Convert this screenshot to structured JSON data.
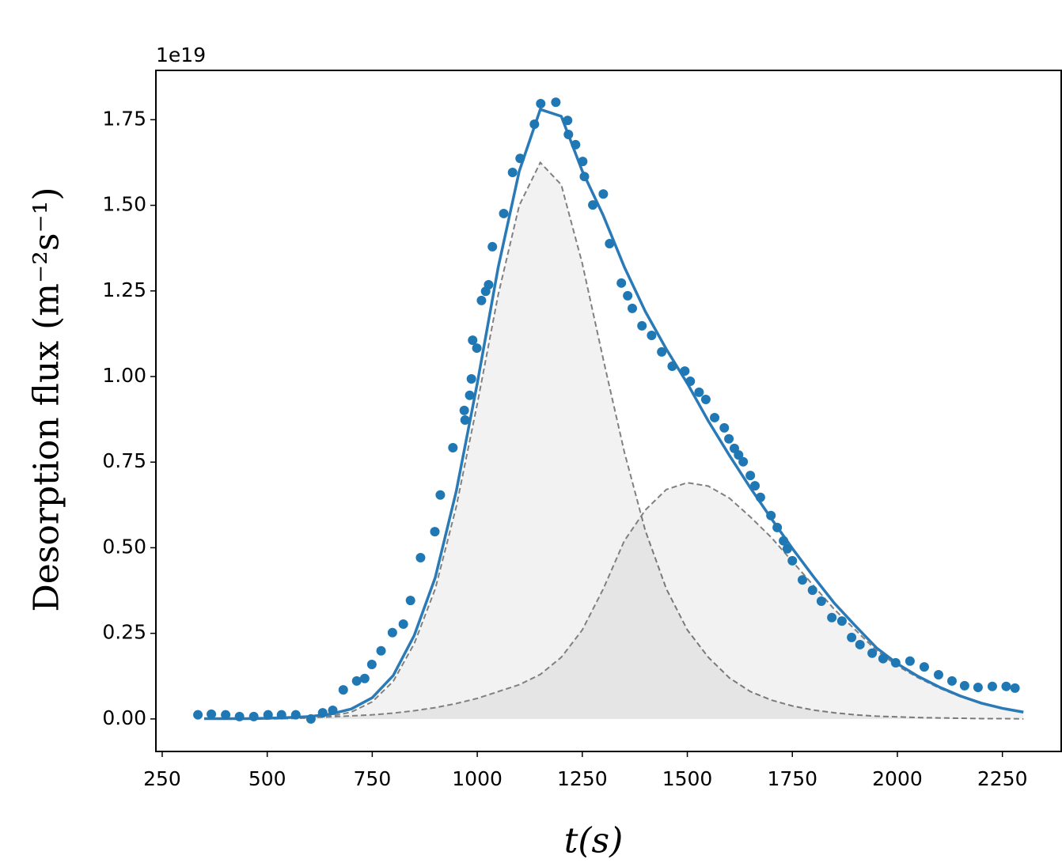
{
  "chart_data": {
    "type": "scatter",
    "offset_label": "1e19",
    "ylabel": "Desorption flux (m⁻²s⁻¹)",
    "xlabel": "t(s)",
    "xlim": [
      235,
      2390
    ],
    "ylim": [
      -0.095,
      1.894
    ],
    "xticks": [
      250,
      500,
      750,
      1000,
      1250,
      1500,
      1750,
      2000,
      2250
    ],
    "yticks": [
      {
        "value": 0,
        "label": "0.00"
      },
      {
        "value": 0.25,
        "label": "0.25"
      },
      {
        "value": 0.5,
        "label": "0.50"
      },
      {
        "value": 0.75,
        "label": "0.75"
      },
      {
        "value": 1,
        "label": "1.00"
      },
      {
        "value": 1.25,
        "label": "1.25"
      },
      {
        "value": 1.5,
        "label": "1.50"
      },
      {
        "value": 1.75,
        "label": "1.75"
      }
    ],
    "x": [
      350,
      400,
      450,
      500,
      550,
      600,
      650,
      700,
      750,
      800,
      850,
      900,
      950,
      1000,
      1050,
      1100,
      1150,
      1200,
      1250,
      1300,
      1350,
      1400,
      1450,
      1500,
      1550,
      1600,
      1650,
      1700,
      1750,
      1800,
      1850,
      1900,
      1950,
      2000,
      2050,
      2100,
      2150,
      2200,
      2250,
      2300
    ],
    "series": [
      {
        "kind": "area",
        "color": "#808080",
        "fill": "#000000",
        "values": [
          0,
          0,
          0,
          0,
          0.001,
          0.003,
          0.008,
          0.02,
          0.05,
          0.11,
          0.22,
          0.38,
          0.62,
          0.92,
          1.24,
          1.5,
          1.625,
          1.56,
          1.33,
          1.05,
          0.78,
          0.55,
          0.38,
          0.26,
          0.18,
          0.12,
          0.08,
          0.055,
          0.038,
          0.026,
          0.018,
          0.012,
          0.008,
          0.006,
          0.004,
          0.003,
          0.002,
          0.001,
          0.001,
          0
        ]
      },
      {
        "kind": "area",
        "color": "#808080",
        "fill": "#000000",
        "values": [
          0.001,
          0.001,
          0.001,
          0.002,
          0.003,
          0.004,
          0.006,
          0.009,
          0.012,
          0.017,
          0.024,
          0.033,
          0.045,
          0.06,
          0.08,
          0.1,
          0.13,
          0.18,
          0.26,
          0.38,
          0.52,
          0.61,
          0.67,
          0.69,
          0.68,
          0.645,
          0.59,
          0.53,
          0.46,
          0.39,
          0.32,
          0.26,
          0.2,
          0.155,
          0.12,
          0.09,
          0.065,
          0.045,
          0.03,
          0.02
        ]
      },
      {
        "kind": "line",
        "color": "#2a7ab8",
        "values": [
          0.001,
          0.001,
          0.001,
          0.002,
          0.004,
          0.007,
          0.014,
          0.029,
          0.062,
          0.127,
          0.244,
          0.413,
          0.665,
          0.98,
          1.32,
          1.6,
          1.78,
          1.76,
          1.6,
          1.47,
          1.32,
          1.19,
          1.08,
          0.98,
          0.87,
          0.77,
          0.675,
          0.585,
          0.498,
          0.416,
          0.338,
          0.272,
          0.208,
          0.161,
          0.124,
          0.093,
          0.067,
          0.046,
          0.031,
          0.02
        ]
      },
      {
        "kind": "points",
        "color": "#1f77b4",
        "x": [
          335,
          367,
          401,
          434,
          468,
          502,
          534,
          568,
          604,
          632,
          656,
          681,
          713,
          732,
          749,
          771,
          798,
          824,
          841,
          865,
          899,
          912,
          942,
          969,
          971,
          982,
          986,
          989,
          999,
          1010,
          1020,
          1027,
          1036,
          1063,
          1084,
          1102,
          1136,
          1151,
          1187,
          1215,
          1217,
          1234,
          1251,
          1255,
          1275,
          1300,
          1315,
          1343,
          1358,
          1369,
          1392,
          1415,
          1439,
          1464,
          1494,
          1507,
          1528,
          1544,
          1565,
          1588,
          1599,
          1612,
          1622,
          1633,
          1650,
          1661,
          1674,
          1699,
          1714,
          1729,
          1738,
          1750,
          1774,
          1798,
          1819,
          1844,
          1868,
          1891,
          1911,
          1940,
          1966,
          1996,
          2030,
          2064,
          2098,
          2130,
          2160,
          2192,
          2226,
          2259,
          2280
        ],
        "values": [
          0.012,
          0.014,
          0.012,
          0.007,
          0.007,
          0.012,
          0.012,
          0.012,
          0,
          0.018,
          0.025,
          0.085,
          0.111,
          0.118,
          0.159,
          0.199,
          0.252,
          0.277,
          0.346,
          0.471,
          0.547,
          0.654,
          0.792,
          0.901,
          0.873,
          0.945,
          0.993,
          1.106,
          1.083,
          1.222,
          1.249,
          1.268,
          1.379,
          1.476,
          1.596,
          1.637,
          1.737,
          1.797,
          1.801,
          1.748,
          1.707,
          1.677,
          1.628,
          1.584,
          1.501,
          1.533,
          1.388,
          1.273,
          1.236,
          1.199,
          1.148,
          1.12,
          1.072,
          1.03,
          1.016,
          0.986,
          0.954,
          0.933,
          0.88,
          0.85,
          0.818,
          0.79,
          0.771,
          0.751,
          0.711,
          0.681,
          0.647,
          0.594,
          0.559,
          0.52,
          0.497,
          0.462,
          0.406,
          0.376,
          0.344,
          0.296,
          0.286,
          0.238,
          0.217,
          0.192,
          0.176,
          0.164,
          0.169,
          0.152,
          0.129,
          0.111,
          0.097,
          0.092,
          0.095,
          0.095,
          0.09
        ]
      }
    ]
  }
}
